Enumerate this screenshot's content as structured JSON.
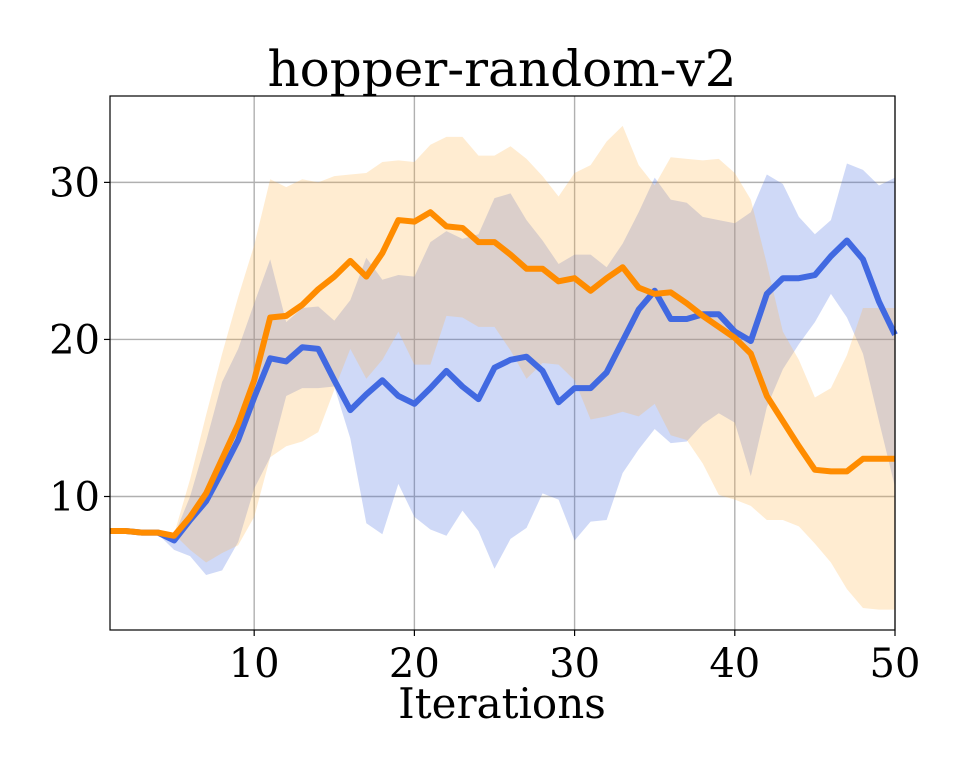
{
  "chart_data": {
    "type": "line",
    "title": "hopper-random-v2",
    "xlabel": "Iterations",
    "ylabel": "",
    "xlim": [
      1,
      50
    ],
    "ylim": [
      1.5,
      35.5
    ],
    "xticks": [
      10,
      20,
      30,
      40,
      50
    ],
    "yticks": [
      10,
      20,
      30
    ],
    "grid": true,
    "x": [
      1,
      2,
      3,
      4,
      5,
      6,
      7,
      8,
      9,
      10,
      11,
      12,
      13,
      14,
      15,
      16,
      17,
      18,
      19,
      20,
      21,
      22,
      23,
      24,
      25,
      26,
      27,
      28,
      29,
      30,
      31,
      32,
      33,
      34,
      35,
      36,
      37,
      38,
      39,
      40,
      41,
      42,
      43,
      44,
      45,
      46,
      47,
      48,
      49,
      50
    ],
    "series": [
      {
        "color": "#4169e1",
        "band_color": "#4169e1",
        "values": [
          7.8,
          7.8,
          7.7,
          7.7,
          7.2,
          8.5,
          9.7,
          11.6,
          13.6,
          16.3,
          18.8,
          18.6,
          19.5,
          19.4,
          17.4,
          15.5,
          16.5,
          17.4,
          16.4,
          15.9,
          16.9,
          18.0,
          17.0,
          16.2,
          18.2,
          18.7,
          18.9,
          18.0,
          16.0,
          16.9,
          16.9,
          17.9,
          19.9,
          21.9,
          23.1,
          21.3,
          21.3,
          21.6,
          21.6,
          20.5,
          19.9,
          22.9,
          23.9,
          23.9,
          24.1,
          25.3,
          26.3,
          25.1,
          22.4,
          20.3
        ],
        "lower": [
          7.8,
          7.8,
          7.7,
          7.6,
          6.6,
          6.2,
          5.0,
          5.3,
          7.1,
          10.5,
          12.5,
          16.4,
          16.9,
          16.9,
          17.0,
          13.7,
          8.3,
          7.6,
          10.8,
          8.7,
          7.9,
          7.5,
          9.1,
          7.8,
          5.4,
          7.3,
          8.0,
          10.2,
          9.8,
          7.2,
          8.4,
          8.5,
          11.5,
          13.0,
          14.3,
          13.4,
          13.5,
          14.6,
          15.3,
          14.7,
          11.3,
          15.7,
          18.1,
          19.7,
          21.1,
          22.9,
          21.4,
          19.1,
          14.8,
          10.6
        ],
        "upper": [
          7.8,
          7.8,
          7.7,
          7.7,
          7.5,
          10.0,
          13.5,
          17.3,
          19.4,
          22.3,
          25.1,
          21.1,
          22.0,
          22.1,
          21.2,
          22.5,
          25.2,
          23.8,
          24.1,
          24.0,
          26.2,
          26.9,
          26.4,
          26.7,
          29.0,
          29.3,
          27.6,
          26.3,
          24.8,
          25.4,
          25.4,
          24.6,
          26.1,
          28.1,
          30.3,
          28.9,
          28.7,
          27.8,
          27.6,
          27.4,
          28.1,
          30.5,
          29.9,
          27.8,
          26.7,
          27.6,
          31.2,
          30.8,
          29.8,
          30.3
        ]
      },
      {
        "color": "#ff8c00",
        "band_color": "#ffb347",
        "values": [
          7.8,
          7.8,
          7.7,
          7.7,
          7.5,
          8.7,
          10.2,
          12.4,
          14.6,
          17.4,
          21.4,
          21.5,
          22.2,
          23.2,
          24.0,
          25.0,
          24.0,
          25.5,
          27.6,
          27.5,
          28.1,
          27.2,
          27.1,
          26.2,
          26.2,
          25.4,
          24.5,
          24.5,
          23.7,
          23.9,
          23.1,
          23.9,
          24.6,
          23.3,
          22.9,
          23.0,
          22.3,
          21.5,
          20.8,
          20.1,
          19.1,
          16.4,
          14.8,
          13.2,
          11.7,
          11.6,
          11.6,
          12.4,
          12.4,
          12.4
        ],
        "lower": [
          7.8,
          7.8,
          7.7,
          7.7,
          7.6,
          6.6,
          5.8,
          6.4,
          6.9,
          8.7,
          12.5,
          13.2,
          13.5,
          14.1,
          16.8,
          19.4,
          17.5,
          18.7,
          20.5,
          18.4,
          18.4,
          21.5,
          21.4,
          20.8,
          20.8,
          19.3,
          17.5,
          18.5,
          18.4,
          17.4,
          14.9,
          15.1,
          15.4,
          15.1,
          15.9,
          13.9,
          13.6,
          12.1,
          10.1,
          9.8,
          9.4,
          8.5,
          8.5,
          8.1,
          7.0,
          5.8,
          4.1,
          2.9,
          2.8,
          2.8
        ],
        "upper": [
          7.8,
          7.8,
          7.7,
          7.7,
          7.6,
          11.1,
          15.2,
          19.1,
          22.7,
          26.0,
          30.2,
          29.7,
          30.2,
          30.0,
          30.4,
          30.5,
          30.6,
          31.3,
          31.4,
          31.3,
          32.4,
          32.9,
          32.9,
          31.7,
          31.7,
          32.3,
          31.5,
          30.4,
          29.1,
          30.6,
          31.1,
          32.6,
          33.6,
          31.1,
          29.8,
          31.6,
          31.5,
          31.4,
          31.5,
          30.6,
          28.9,
          24.8,
          20.5,
          18.7,
          16.3,
          16.9,
          19.0,
          22.0,
          22.0,
          22.0
        ]
      }
    ]
  }
}
